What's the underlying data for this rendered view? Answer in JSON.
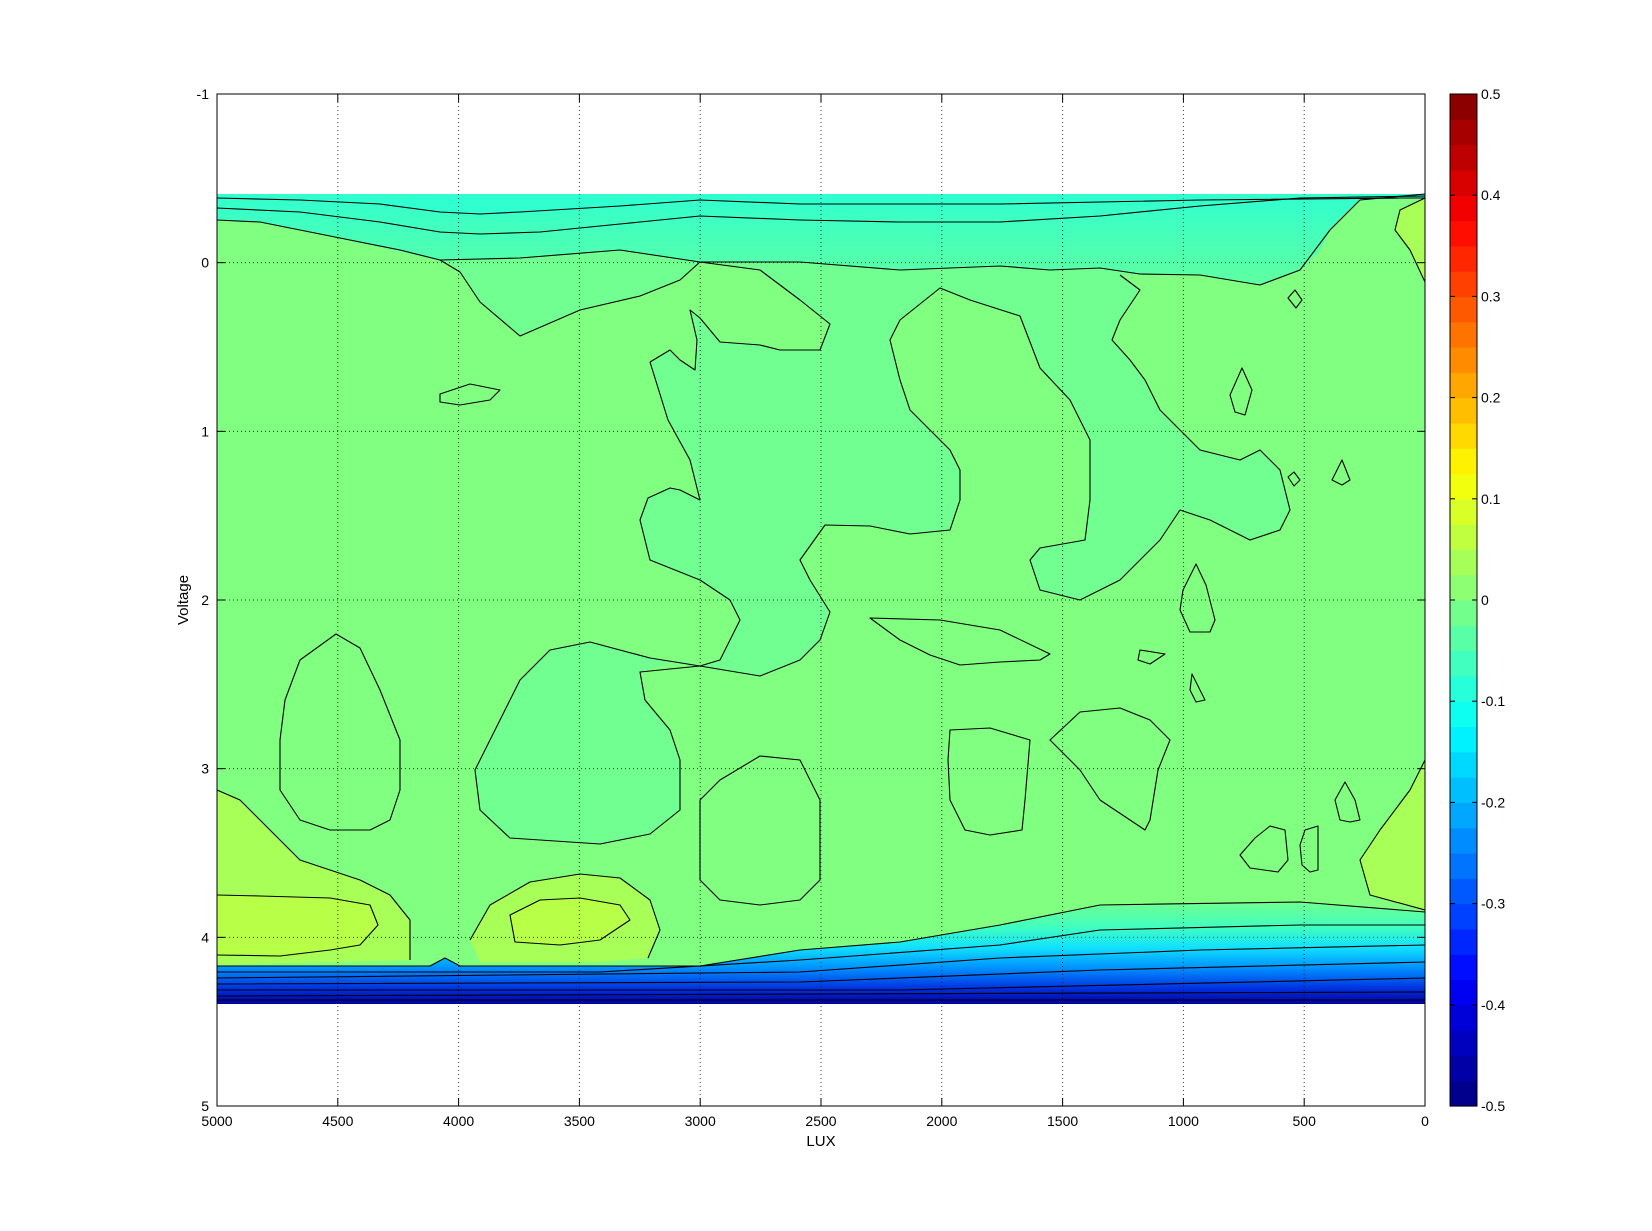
{
  "chart_data": {
    "type": "contour",
    "title": "",
    "xlabel": "LUX",
    "ylabel": "Voltage",
    "xlim": [
      5000,
      0
    ],
    "ylim": [
      -1,
      5
    ],
    "x_reversed": true,
    "y_reversed": true,
    "x_ticks": [
      5000,
      4500,
      4000,
      3500,
      3000,
      2500,
      2000,
      1500,
      1000,
      500,
      0
    ],
    "x_tick_labels": [
      "5000",
      "4500",
      "4000",
      "3500",
      "3000",
      "2500",
      "2000",
      "1500",
      "1000",
      "500",
      "0"
    ],
    "y_ticks": [
      -1,
      0,
      1,
      2,
      3,
      4,
      5
    ],
    "y_tick_labels": [
      "-1",
      "0",
      "1",
      "2",
      "3",
      "4",
      "5"
    ],
    "grid": true,
    "data_extent": {
      "x": [
        0,
        5000
      ],
      "y": [
        -0.4,
        4.4
      ]
    },
    "colormap": "jet",
    "colorbar": {
      "limits": [
        -0.5,
        0.5
      ],
      "ticks": [
        0.5,
        0.4,
        0.3,
        0.2,
        0.1,
        0,
        -0.1,
        -0.2,
        -0.3,
        -0.4,
        -0.5
      ],
      "tick_labels": [
        "0.5",
        "0.4",
        "0.3",
        "0.2",
        "0.1",
        "0",
        "-0.1",
        "-0.2",
        "-0.3",
        "-0.4",
        "-0.5"
      ],
      "levels": 40
    },
    "regions": [
      {
        "name": "top-edge band",
        "value": -0.15,
        "approx_y_range": [
          -0.4,
          -0.15
        ]
      },
      {
        "name": "background",
        "value": 0.0
      },
      {
        "name": "bottom-edge gradient",
        "value_range": [
          -0.45,
          -0.05
        ],
        "approx_y_range": [
          4.0,
          4.4
        ]
      },
      {
        "name": "positive patch near (4700, 3.9)",
        "value": 0.05
      },
      {
        "name": "positive patch near (3550, 3.9)",
        "value": 0.05
      },
      {
        "name": "positive patch near (0, 3.6)",
        "value": 0.04
      },
      {
        "name": "positive patch near (50, 0.0)",
        "value": 0.03
      }
    ],
    "colors": {
      "background_level": "#80ff80",
      "negative_patch": "#70ff90",
      "positive_patch": "#a8ff58",
      "positive_patch_inner": "#b8ff48",
      "top_band": "#40ffc0",
      "bottom_min": "#0000a0"
    }
  }
}
